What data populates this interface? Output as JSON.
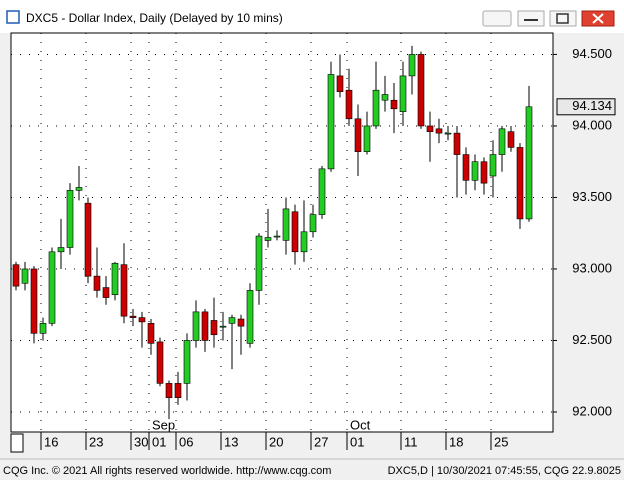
{
  "window": {
    "title": "DXC5 - Dollar Index, Daily (Delayed by 10 mins)",
    "footer_left": "CQG Inc. © 2021 All rights reserved worldwide. http://www.cqg.com",
    "footer_right": "DXC5,D | 10/30/2021 07:45:55, CQG 22.9.8025"
  },
  "chart_data": {
    "type": "candlestick",
    "categories": [
      null,
      null,
      null,
      "16",
      null,
      null,
      null,
      null,
      "23",
      null,
      null,
      null,
      null,
      "30",
      null,
      "01",
      null,
      null,
      "06",
      null,
      null,
      null,
      null,
      "13",
      null,
      null,
      null,
      null,
      "20",
      null,
      null,
      null,
      null,
      "27",
      null,
      null,
      null,
      "01",
      null,
      null,
      null,
      null,
      null,
      "11",
      null,
      null,
      null,
      null,
      "18",
      null,
      null,
      null,
      null,
      "25",
      null,
      null,
      null,
      null
    ],
    "month_categories": [
      null,
      null,
      null,
      null,
      null,
      null,
      null,
      null,
      null,
      null,
      null,
      null,
      null,
      null,
      null,
      "Sep",
      null,
      null,
      null,
      null,
      null,
      null,
      null,
      null,
      null,
      null,
      null,
      null,
      null,
      null,
      null,
      null,
      null,
      null,
      null,
      null,
      null,
      "Oct",
      null,
      null,
      null,
      null,
      null,
      null,
      null,
      null,
      null,
      null,
      null,
      null,
      null,
      null,
      null,
      null,
      null,
      null,
      null,
      null
    ],
    "open": [
      93.03,
      92.9,
      93.0,
      92.55,
      92.62,
      93.12,
      93.15,
      93.55,
      93.46,
      92.95,
      92.87,
      92.82,
      93.03,
      92.67,
      92.66,
      92.62,
      92.49,
      92.2,
      92.2,
      92.2,
      92.5,
      92.7,
      92.64,
      92.6,
      92.62,
      92.65,
      92.48,
      92.85,
      93.2,
      93.23,
      93.2,
      93.4,
      93.12,
      93.26,
      93.38,
      93.7,
      94.35,
      94.25,
      94.05,
      93.82,
      94.0,
      94.18,
      94.18,
      94.1,
      94.35,
      94.5,
      94.0,
      93.98,
      93.95,
      93.95,
      93.8,
      93.62,
      93.75,
      93.65,
      93.8,
      93.96,
      93.85,
      93.35
    ],
    "high": [
      93.05,
      93.05,
      93.02,
      92.66,
      93.15,
      93.35,
      93.6,
      93.72,
      93.5,
      93.15,
      92.95,
      93.05,
      93.18,
      92.72,
      92.7,
      92.65,
      92.52,
      92.22,
      92.28,
      92.55,
      92.78,
      92.72,
      92.8,
      92.7,
      92.68,
      92.68,
      92.9,
      93.25,
      93.42,
      93.27,
      93.5,
      93.45,
      93.48,
      93.45,
      93.72,
      94.45,
      94.5,
      94.4,
      94.15,
      94.1,
      94.45,
      94.35,
      94.3,
      94.45,
      94.56,
      94.52,
      94.1,
      94.05,
      94.0,
      94.0,
      93.85,
      93.8,
      93.78,
      93.9,
      94.0,
      94.0,
      93.88,
      94.28
    ],
    "low": [
      92.85,
      92.85,
      92.48,
      92.5,
      92.6,
      93.0,
      93.1,
      93.48,
      92.9,
      92.8,
      92.75,
      92.78,
      92.62,
      92.6,
      92.45,
      92.4,
      92.18,
      91.95,
      92.05,
      92.08,
      92.45,
      92.42,
      92.45,
      92.5,
      92.3,
      92.4,
      92.45,
      92.75,
      93.15,
      93.2,
      93.1,
      93.03,
      93.05,
      93.22,
      93.35,
      93.68,
      94.2,
      94.0,
      93.65,
      93.8,
      93.98,
      94.1,
      93.95,
      94.0,
      94.22,
      93.98,
      93.75,
      93.88,
      93.9,
      93.5,
      93.52,
      93.55,
      93.52,
      93.5,
      93.68,
      93.82,
      93.28,
      93.33
    ],
    "close": [
      92.88,
      93.0,
      92.55,
      92.62,
      93.12,
      93.15,
      93.55,
      93.57,
      92.95,
      92.85,
      92.8,
      93.04,
      92.67,
      92.66,
      92.63,
      92.48,
      92.2,
      92.1,
      92.1,
      92.5,
      92.7,
      92.5,
      92.54,
      92.6,
      92.66,
      92.6,
      92.85,
      93.23,
      93.22,
      93.23,
      93.42,
      93.12,
      93.26,
      93.38,
      93.7,
      94.36,
      94.24,
      94.05,
      93.82,
      94.0,
      94.25,
      94.22,
      94.12,
      94.35,
      94.5,
      94.0,
      93.96,
      93.95,
      93.95,
      93.8,
      93.62,
      93.75,
      93.6,
      93.8,
      93.98,
      93.85,
      93.35,
      94.134
    ],
    "up_color": "#22cc22",
    "down_color": "#cc0000",
    "ylim": [
      91.86,
      94.65
    ],
    "yticks": [
      {
        "value": 92.0,
        "label": "92.000"
      },
      {
        "value": 92.5,
        "label": "92.500"
      },
      {
        "value": 93.0,
        "label": "93.000"
      },
      {
        "value": 93.5,
        "label": "93.500"
      },
      {
        "value": 94.0,
        "label": "94.000"
      },
      {
        "value": 94.5,
        "label": "94.500"
      }
    ],
    "grid": true
  }
}
